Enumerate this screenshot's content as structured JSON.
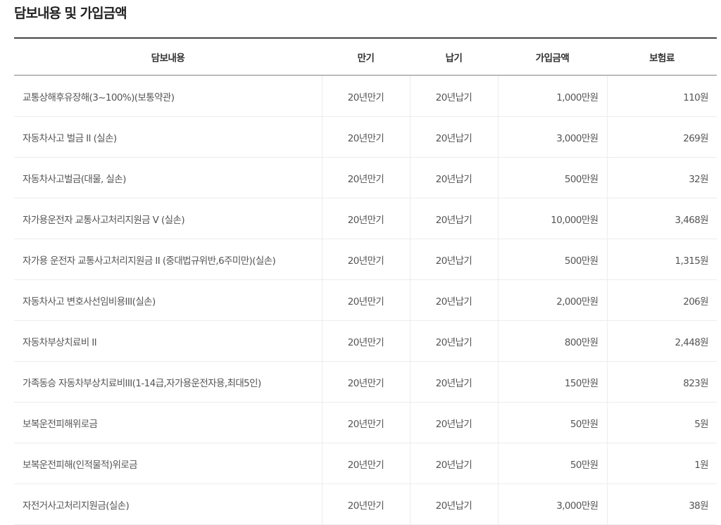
{
  "title": "담보내용 및 가입금액",
  "columns": [
    "담보내용",
    "만기",
    "납기",
    "가입금액",
    "보험료"
  ],
  "rows": [
    {
      "name": "교통상해후유장해(3~100%)(보통약관)",
      "term": "20년만기",
      "pay": "20년납기",
      "amount": "1,000만원",
      "premium": "110원"
    },
    {
      "name": "자동차사고 벌금 II (실손)",
      "term": "20년만기",
      "pay": "20년납기",
      "amount": "3,000만원",
      "premium": "269원"
    },
    {
      "name": "자동차사고벌금(대물, 실손)",
      "term": "20년만기",
      "pay": "20년납기",
      "amount": "500만원",
      "premium": "32원"
    },
    {
      "name": "자가용운전자 교통사고처리지원금 V (실손)",
      "term": "20년만기",
      "pay": "20년납기",
      "amount": "10,000만원",
      "premium": "3,468원"
    },
    {
      "name": "자가용 운전자 교통사고처리지원금 II (중대법규위반,6주미만)(실손)",
      "term": "20년만기",
      "pay": "20년납기",
      "amount": "500만원",
      "premium": "1,315원"
    },
    {
      "name": "자동차사고 변호사선임비용III(실손)",
      "term": "20년만기",
      "pay": "20년납기",
      "amount": "2,000만원",
      "premium": "206원"
    },
    {
      "name": "자동차부상치료비 II",
      "term": "20년만기",
      "pay": "20년납기",
      "amount": "800만원",
      "premium": "2,448원"
    },
    {
      "name": "가족동승 자동차부상치료비III(1-14급,자가용운전자용,최대5인)",
      "term": "20년만기",
      "pay": "20년납기",
      "amount": "150만원",
      "premium": "823원"
    },
    {
      "name": "보복운전피해위로금",
      "term": "20년만기",
      "pay": "20년납기",
      "amount": "50만원",
      "premium": "5원"
    },
    {
      "name": "보복운전피해(인적물적)위로금",
      "term": "20년만기",
      "pay": "20년납기",
      "amount": "50만원",
      "premium": "1원"
    },
    {
      "name": "자전거사고처리지원금(실손)",
      "term": "20년만기",
      "pay": "20년납기",
      "amount": "3,000만원",
      "premium": "38원"
    }
  ]
}
